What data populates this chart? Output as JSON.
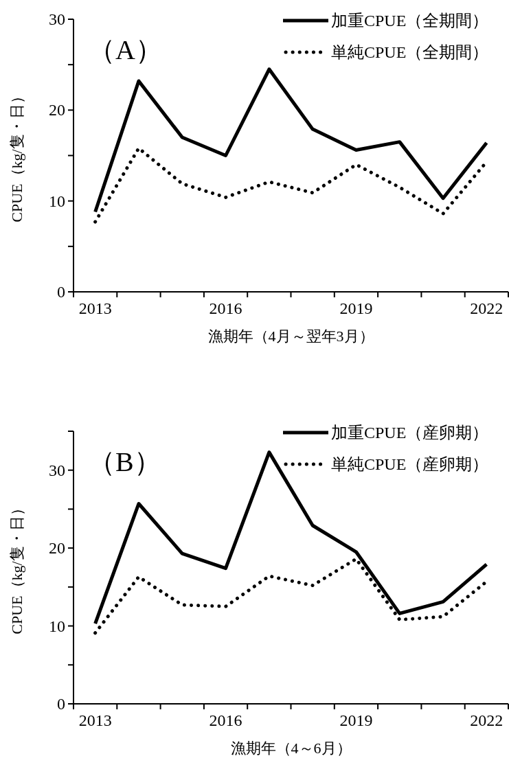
{
  "chart_data": [
    {
      "type": "line",
      "title": "（A）",
      "xlabel": "漁期年（4月～翌年3月）",
      "ylabel": "CPUE（kg/隻・日）",
      "categories": [
        "2013",
        null,
        null,
        "2016",
        null,
        null,
        "2019",
        null,
        null,
        "2022"
      ],
      "ylim": [
        0,
        30
      ],
      "yticks": [
        0,
        {
          "value": 5,
          "label": null
        },
        10,
        {
          "value": 15,
          "label": null
        },
        20,
        {
          "value": 25,
          "label": null
        },
        30
      ],
      "grid": false,
      "legend": "top right",
      "series": [
        {
          "name": "加重CPUE（全期間）",
          "color": "#000000",
          "line_style": "solid",
          "values": [
            8.8,
            23.2,
            17.0,
            15.0,
            24.5,
            17.9,
            15.6,
            16.5,
            10.3,
            16.4
          ]
        },
        {
          "name": "単純CPUE（全期間）",
          "color": "#000000",
          "line_style": "dotted",
          "values": [
            7.7,
            15.8,
            11.9,
            10.4,
            12.1,
            10.9,
            14.0,
            11.5,
            8.6,
            14.3
          ]
        }
      ]
    },
    {
      "type": "line",
      "title": "（B）",
      "xlabel": "漁期年（4～6月）",
      "ylabel": "CPUE（kg/隻・日）",
      "categories": [
        "2013",
        null,
        null,
        "2016",
        null,
        null,
        "2019",
        null,
        null,
        "2022"
      ],
      "ylim": [
        0,
        35
      ],
      "yticks": [
        0,
        {
          "value": 5,
          "label": null
        },
        10,
        {
          "value": 15,
          "label": null
        },
        20,
        {
          "value": 25,
          "label": null
        },
        30,
        {
          "value": 35,
          "label": null
        }
      ],
      "grid": false,
      "legend": "top right",
      "series": [
        {
          "name": "加重CPUE（産卵期）",
          "color": "#000000",
          "line_style": "solid",
          "values": [
            10.3,
            25.7,
            19.3,
            17.4,
            32.3,
            22.9,
            19.5,
            11.6,
            13.1,
            17.9
          ]
        },
        {
          "name": "単純CPUE（産卵期）",
          "color": "#000000",
          "line_style": "dotted",
          "values": [
            9.1,
            16.3,
            12.7,
            12.5,
            16.4,
            15.2,
            18.6,
            10.8,
            11.2,
            15.7
          ]
        }
      ]
    }
  ]
}
